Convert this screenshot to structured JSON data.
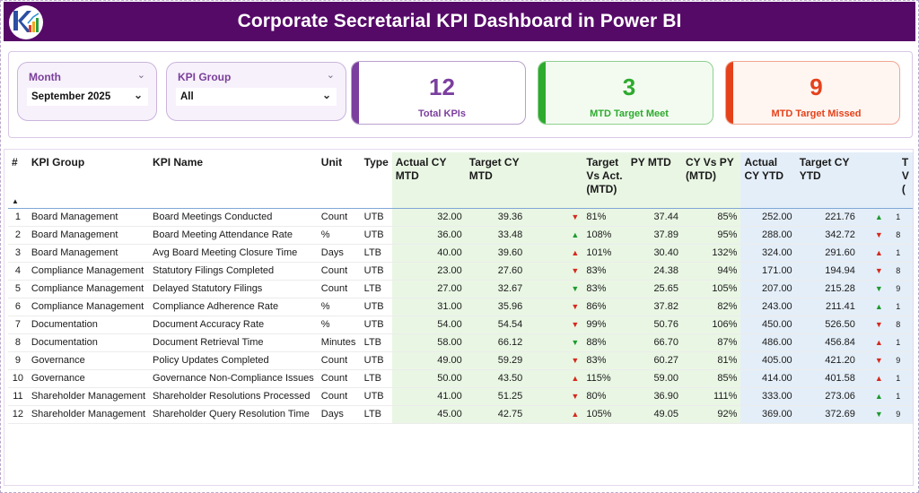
{
  "header": {
    "title": "Corporate Secretarial KPI Dashboard in Power BI",
    "logo_icon": "kpi-logo-icon"
  },
  "filters": {
    "month": {
      "label": "Month",
      "value": "September 2025"
    },
    "kpi_group": {
      "label": "KPI Group",
      "value": "All"
    }
  },
  "cards": {
    "total": {
      "value": "12",
      "label": "Total KPIs",
      "color": "#7b3f9e"
    },
    "meet": {
      "value": "3",
      "label": "MTD Target Meet",
      "color": "#2eaa2e"
    },
    "missed": {
      "value": "9",
      "label": "MTD Target Missed",
      "color": "#e5421b"
    }
  },
  "table": {
    "headers": {
      "num": "#",
      "group": "KPI Group",
      "name": "KPI Name",
      "unit": "Unit",
      "type": "Type",
      "actual_mtd": "Actual CY MTD",
      "target_mtd": "Target CY MTD",
      "tva_mtd": "Target Vs Act. (MTD)",
      "py_mtd": "PY MTD",
      "cy_vs_py_mtd": "CY Vs PY (MTD)",
      "actual_ytd": "Actual CY YTD",
      "target_ytd": "Target CY YTD",
      "tva_ytd": "T V ("
    },
    "rows": [
      {
        "num": "1",
        "group": "Board Management",
        "name": "Board Meetings Conducted",
        "unit": "Count",
        "type": "UTB",
        "actual_mtd": "32.00",
        "target_mtd": "39.36",
        "mtd_dir": "down",
        "tva_mtd": "81%",
        "py_mtd": "37.44",
        "cy_vs_py_mtd": "85%",
        "actual_ytd": "252.00",
        "target_ytd": "221.76",
        "ytd_dir": "up",
        "tva_ytd": "1"
      },
      {
        "num": "2",
        "group": "Board Management",
        "name": "Board Meeting Attendance Rate",
        "unit": "%",
        "type": "UTB",
        "actual_mtd": "36.00",
        "target_mtd": "33.48",
        "mtd_dir": "up",
        "tva_mtd": "108%",
        "py_mtd": "37.89",
        "cy_vs_py_mtd": "95%",
        "actual_ytd": "288.00",
        "target_ytd": "342.72",
        "ytd_dir": "down",
        "tva_ytd": "8"
      },
      {
        "num": "3",
        "group": "Board Management",
        "name": "Avg Board Meeting Closure Time",
        "unit": "Days",
        "type": "LTB",
        "actual_mtd": "40.00",
        "target_mtd": "39.60",
        "mtd_dir": "up-red",
        "tva_mtd": "101%",
        "py_mtd": "30.40",
        "cy_vs_py_mtd": "132%",
        "actual_ytd": "324.00",
        "target_ytd": "291.60",
        "ytd_dir": "up-red",
        "tva_ytd": "1"
      },
      {
        "num": "4",
        "group": "Compliance Management",
        "name": "Statutory Filings Completed",
        "unit": "Count",
        "type": "UTB",
        "actual_mtd": "23.00",
        "target_mtd": "27.60",
        "mtd_dir": "down",
        "tva_mtd": "83%",
        "py_mtd": "24.38",
        "cy_vs_py_mtd": "94%",
        "actual_ytd": "171.00",
        "target_ytd": "194.94",
        "ytd_dir": "down",
        "tva_ytd": "8"
      },
      {
        "num": "5",
        "group": "Compliance Management",
        "name": "Delayed Statutory Filings",
        "unit": "Count",
        "type": "LTB",
        "actual_mtd": "27.00",
        "target_mtd": "32.67",
        "mtd_dir": "down-green",
        "tva_mtd": "83%",
        "py_mtd": "25.65",
        "cy_vs_py_mtd": "105%",
        "actual_ytd": "207.00",
        "target_ytd": "215.28",
        "ytd_dir": "down-green",
        "tva_ytd": "9"
      },
      {
        "num": "6",
        "group": "Compliance Management",
        "name": "Compliance Adherence Rate",
        "unit": "%",
        "type": "UTB",
        "actual_mtd": "31.00",
        "target_mtd": "35.96",
        "mtd_dir": "down",
        "tva_mtd": "86%",
        "py_mtd": "37.82",
        "cy_vs_py_mtd": "82%",
        "actual_ytd": "243.00",
        "target_ytd": "211.41",
        "ytd_dir": "up",
        "tva_ytd": "1"
      },
      {
        "num": "7",
        "group": "Documentation",
        "name": "Document Accuracy Rate",
        "unit": "%",
        "type": "UTB",
        "actual_mtd": "54.00",
        "target_mtd": "54.54",
        "mtd_dir": "down",
        "tva_mtd": "99%",
        "py_mtd": "50.76",
        "cy_vs_py_mtd": "106%",
        "actual_ytd": "450.00",
        "target_ytd": "526.50",
        "ytd_dir": "down",
        "tva_ytd": "8"
      },
      {
        "num": "8",
        "group": "Documentation",
        "name": "Document Retrieval Time",
        "unit": "Minutes",
        "type": "LTB",
        "actual_mtd": "58.00",
        "target_mtd": "66.12",
        "mtd_dir": "down-green",
        "tva_mtd": "88%",
        "py_mtd": "66.70",
        "cy_vs_py_mtd": "87%",
        "actual_ytd": "486.00",
        "target_ytd": "456.84",
        "ytd_dir": "up-red",
        "tva_ytd": "1"
      },
      {
        "num": "9",
        "group": "Governance",
        "name": "Policy Updates Completed",
        "unit": "Count",
        "type": "UTB",
        "actual_mtd": "49.00",
        "target_mtd": "59.29",
        "mtd_dir": "down",
        "tva_mtd": "83%",
        "py_mtd": "60.27",
        "cy_vs_py_mtd": "81%",
        "actual_ytd": "405.00",
        "target_ytd": "421.20",
        "ytd_dir": "down",
        "tva_ytd": "9"
      },
      {
        "num": "10",
        "group": "Governance",
        "name": "Governance Non-Compliance Issues",
        "unit": "Count",
        "type": "LTB",
        "actual_mtd": "50.00",
        "target_mtd": "43.50",
        "mtd_dir": "up-red",
        "tva_mtd": "115%",
        "py_mtd": "59.00",
        "cy_vs_py_mtd": "85%",
        "actual_ytd": "414.00",
        "target_ytd": "401.58",
        "ytd_dir": "up-red",
        "tva_ytd": "1"
      },
      {
        "num": "11",
        "group": "Shareholder Management",
        "name": "Shareholder Resolutions Processed",
        "unit": "Count",
        "type": "UTB",
        "actual_mtd": "41.00",
        "target_mtd": "51.25",
        "mtd_dir": "down",
        "tva_mtd": "80%",
        "py_mtd": "36.90",
        "cy_vs_py_mtd": "111%",
        "actual_ytd": "333.00",
        "target_ytd": "273.06",
        "ytd_dir": "up",
        "tva_ytd": "1"
      },
      {
        "num": "12",
        "group": "Shareholder Management",
        "name": "Shareholder Query Resolution Time",
        "unit": "Days",
        "type": "LTB",
        "actual_mtd": "45.00",
        "target_mtd": "42.75",
        "mtd_dir": "up-red",
        "tva_mtd": "105%",
        "py_mtd": "49.05",
        "cy_vs_py_mtd": "92%",
        "actual_ytd": "369.00",
        "target_ytd": "372.69",
        "ytd_dir": "down-green",
        "tva_ytd": "9"
      }
    ]
  }
}
